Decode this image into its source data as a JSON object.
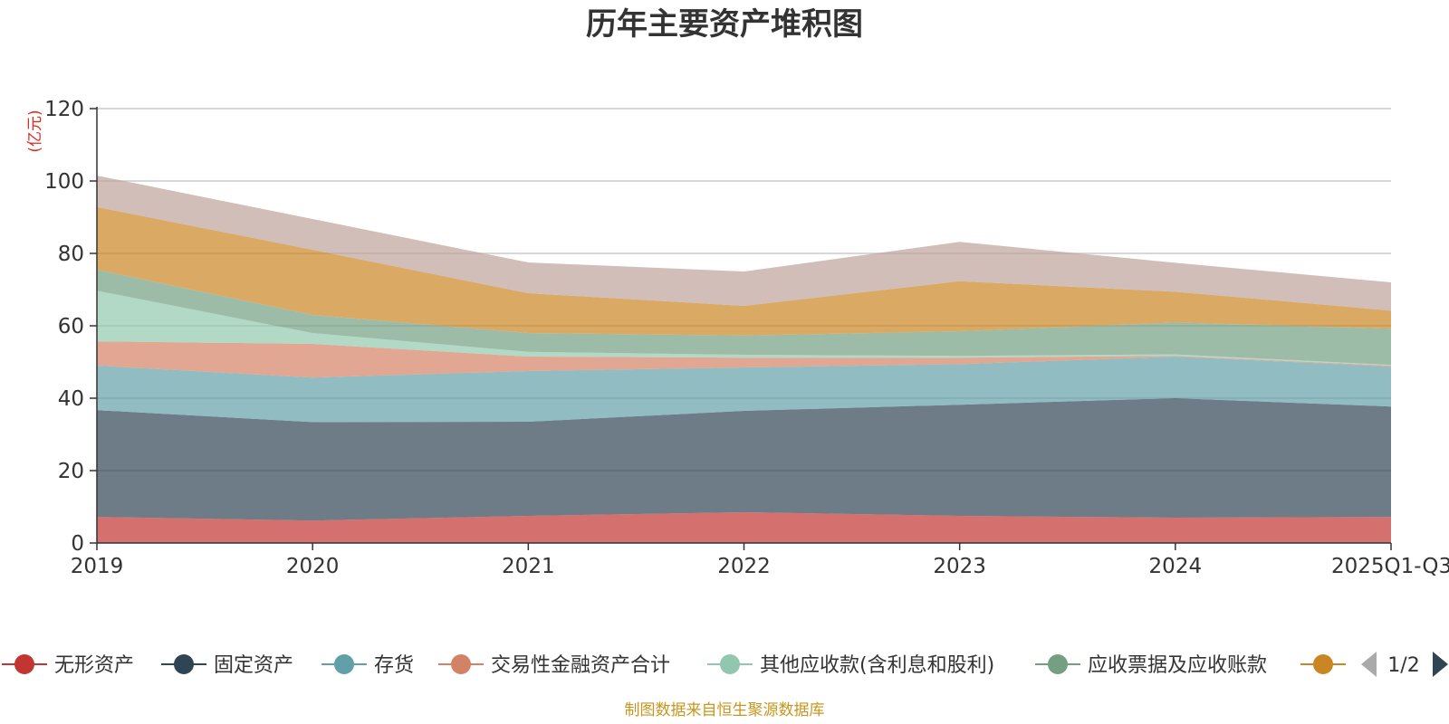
{
  "chart_data": {
    "type": "area",
    "stacked": true,
    "title": "历年主要资产堆积图",
    "unit_label": "(亿元)",
    "x": [
      "2019",
      "2020",
      "2021",
      "2022",
      "2023",
      "2024",
      "2025Q1-Q3"
    ],
    "ylim": [
      0,
      120
    ],
    "yticks": [
      0,
      20,
      40,
      60,
      80,
      100,
      120
    ],
    "grid": true,
    "series": [
      {
        "name": "无形资产",
        "color": "#c23531",
        "values": [
          7.2,
          6.2,
          7.5,
          8.5,
          7.5,
          7.0,
          7.2
        ]
      },
      {
        "name": "固定资产",
        "color": "#2f4554",
        "values": [
          29.5,
          27.2,
          26.0,
          28.0,
          30.7,
          33.0,
          30.5
        ]
      },
      {
        "name": "存货",
        "color": "#61a0a8",
        "values": [
          12.3,
          12.3,
          14.0,
          12.0,
          11.2,
          11.5,
          11.0
        ]
      },
      {
        "name": "交易性金融资产合计",
        "color": "#d48265",
        "values": [
          6.7,
          9.3,
          4.0,
          2.7,
          1.8,
          0.2,
          0.3
        ]
      },
      {
        "name": "其他应收款(含利息和股利)",
        "color": "#91c7ae",
        "values": [
          14.0,
          3.0,
          1.3,
          0.8,
          0.5,
          0.4,
          0.2
        ]
      },
      {
        "name": "应收票据及应收账款",
        "color": "#749f83",
        "values": [
          5.8,
          5.0,
          5.2,
          5.3,
          6.8,
          8.8,
          10.0
        ]
      },
      {
        "name": "",
        "color": "#ca8622",
        "values": [
          17.3,
          18.0,
          11.0,
          8.2,
          13.8,
          8.5,
          5.0
        ]
      },
      {
        "name": "",
        "color": "#bda29a",
        "values": [
          8.7,
          8.5,
          8.5,
          9.5,
          10.9,
          8.0,
          7.8
        ]
      }
    ],
    "legend": {
      "position": "bottom",
      "page": "1/2",
      "visible_count": 7
    }
  },
  "source_note": "制图数据来自恒生聚源数据库"
}
